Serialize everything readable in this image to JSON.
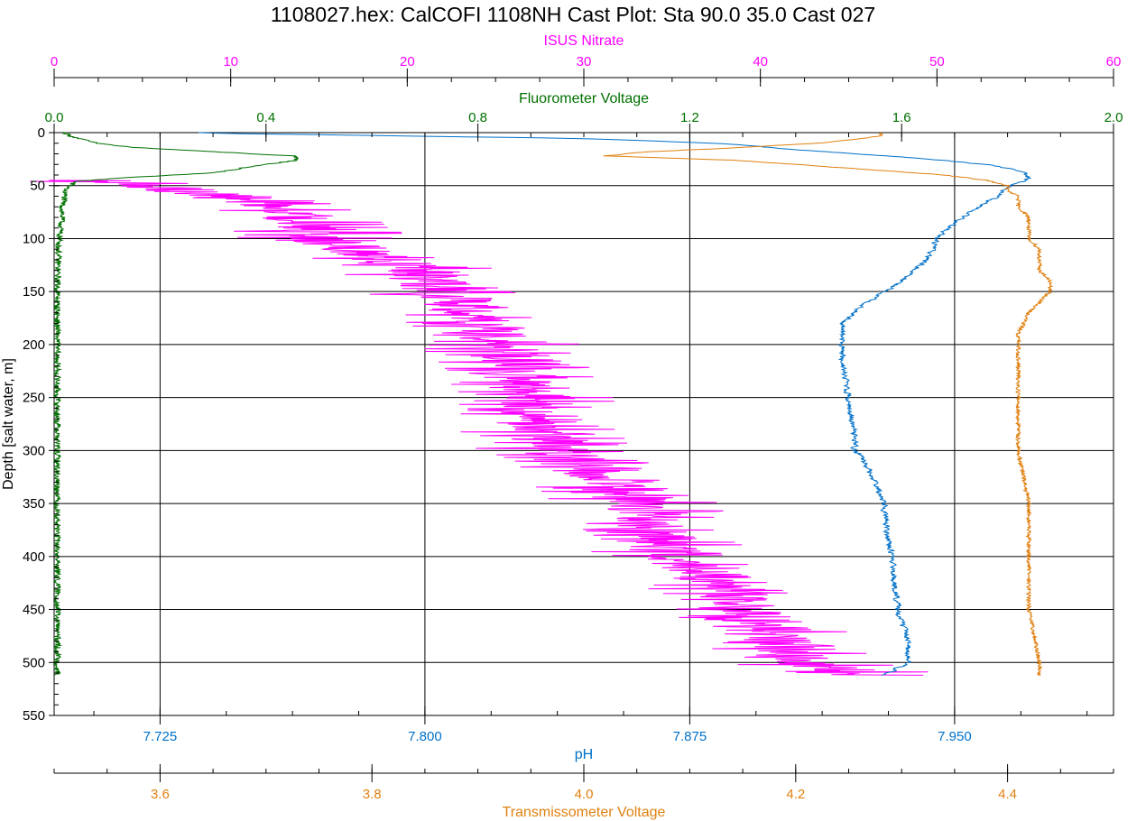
{
  "chart_data": {
    "type": "line",
    "title": "1108027.hex: CalCOFI 1108NH Cast Plot: Sta 90.0 35.0 Cast 027",
    "y_axis": {
      "label": "Depth [salt water, m]",
      "range": [
        0,
        550
      ],
      "ticks": [
        "0",
        "50",
        "100",
        "150",
        "200",
        "250",
        "300",
        "350",
        "400",
        "450",
        "500",
        "550"
      ],
      "inverted": true
    },
    "axes": {
      "nitrate": {
        "label": "ISUS Nitrate",
        "color": "#ff00ff",
        "range": [
          0,
          60
        ],
        "ticks": [
          "0",
          "10",
          "20",
          "30",
          "40",
          "50",
          "60"
        ]
      },
      "fluor": {
        "label": "Fluorometer Voltage",
        "color": "#007000",
        "range": [
          0,
          2
        ],
        "ticks": [
          "0.0",
          "0.4",
          "0.8",
          "1.2",
          "1.6",
          "2.0"
        ]
      },
      "ph": {
        "label": "pH",
        "color": "#0070c8",
        "range": [
          7.695,
          7.995
        ],
        "ticks": [
          "7.725",
          "7.800",
          "7.875",
          "7.950"
        ]
      },
      "trans": {
        "label": "Transmissometer Voltage",
        "color": "#e08010",
        "range": [
          3.5,
          4.5
        ],
        "ticks": [
          "3.6",
          "3.8",
          "4.0",
          "4.2",
          "4.4"
        ]
      }
    },
    "grid": true,
    "series": [
      {
        "name": "ISUS Nitrate",
        "axis": "nitrate",
        "color": "#ff00ff",
        "depth": [
          45,
          50,
          60,
          75,
          90,
          100,
          120,
          135,
          150,
          175,
          200,
          225,
          250,
          275,
          300,
          325,
          350,
          375,
          400,
          425,
          450,
          475,
          500,
          512
        ],
        "values": [
          1,
          5,
          10,
          13,
          15,
          15,
          19,
          21,
          22,
          24,
          25.5,
          26.5,
          27.5,
          27.5,
          28.5,
          31,
          33,
          34,
          35,
          38,
          39.5,
          41,
          42,
          46
        ],
        "jitter": 2.2
      },
      {
        "name": "Fluorometer Voltage",
        "axis": "fluor",
        "color": "#007000",
        "depth": [
          0,
          3,
          6,
          10,
          14,
          18,
          22,
          26,
          30,
          34,
          38,
          42,
          46,
          50,
          55,
          60,
          70,
          80,
          90,
          100,
          110,
          130,
          160,
          200,
          300,
          400,
          512
        ],
        "values": [
          0.02,
          0.03,
          0.05,
          0.08,
          0.15,
          0.3,
          0.45,
          0.46,
          0.4,
          0.35,
          0.3,
          0.15,
          0.04,
          0.03,
          0.02,
          0.02,
          0.015,
          0.015,
          0.012,
          0.01,
          0.008,
          0.007,
          0.006,
          0.006,
          0.006,
          0.006,
          0.006
        ],
        "jitter": 0.006
      },
      {
        "name": "pH",
        "axis": "ph",
        "color": "#0070c8",
        "depth": [
          0,
          5,
          10,
          15,
          20,
          25,
          30,
          35,
          40,
          45,
          50,
          60,
          70,
          80,
          90,
          100,
          120,
          140,
          160,
          180,
          205,
          250,
          300,
          320,
          350,
          400,
          450,
          480,
          500,
          512
        ],
        "values": [
          7.735,
          7.845,
          7.885,
          7.903,
          7.925,
          7.945,
          7.96,
          7.968,
          7.971,
          7.97,
          7.965,
          7.962,
          7.957,
          7.952,
          7.948,
          7.945,
          7.942,
          7.935,
          7.925,
          7.918,
          7.918,
          7.92,
          7.922,
          7.926,
          7.93,
          7.932,
          7.934,
          7.937,
          7.937,
          7.93
        ],
        "jitter": 0.0015
      },
      {
        "name": "Transmissometer Voltage",
        "axis": "trans",
        "color": "#e08010",
        "depth": [
          0,
          3,
          6,
          10,
          15,
          18,
          22,
          26,
          30,
          35,
          40,
          45,
          50,
          55,
          60,
          70,
          80,
          90,
          100,
          110,
          120,
          130,
          140,
          150,
          170,
          190,
          200,
          250,
          300,
          350,
          400,
          450,
          500,
          512
        ],
        "values": [
          4.28,
          4.28,
          4.26,
          4.22,
          4.13,
          4.06,
          4.02,
          4.14,
          4.2,
          4.27,
          4.34,
          4.38,
          4.4,
          4.4,
          4.41,
          4.41,
          4.42,
          4.42,
          4.42,
          4.43,
          4.43,
          4.43,
          4.44,
          4.44,
          4.42,
          4.41,
          4.41,
          4.41,
          4.41,
          4.42,
          4.42,
          4.42,
          4.43,
          4.43
        ],
        "jitter": 0.002
      }
    ]
  }
}
